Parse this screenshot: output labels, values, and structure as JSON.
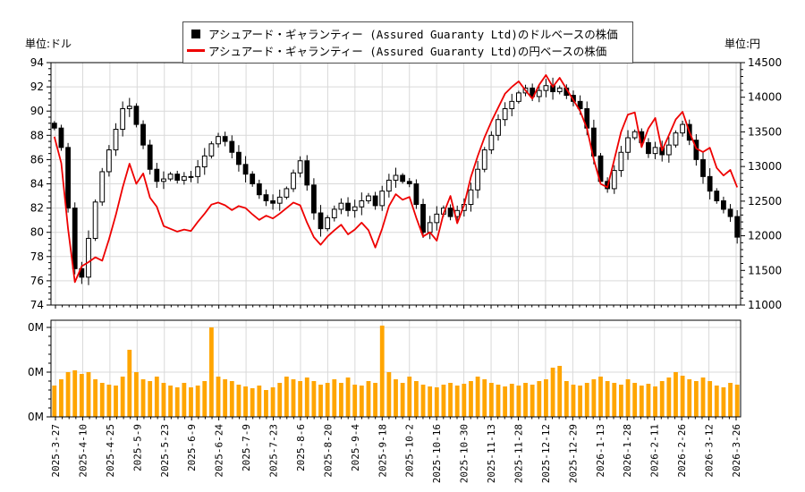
{
  "units": {
    "left": "単位:ドル",
    "right": "単位:円"
  },
  "legend": [
    {
      "marker": "square-icon",
      "color": "#000000",
      "label": "アシュアード・ギャランティー (Assured Guaranty Ltd)のドルベースの株価"
    },
    {
      "marker": "line-icon",
      "color": "#ee0000",
      "label": "アシュアード・ギャランティー (Assured Guaranty Ltd)の円ベースの株価"
    }
  ],
  "colors": {
    "candle_up_fill": "#ffffff",
    "candle_down_fill": "#000000",
    "candle_stroke": "#000000",
    "line_red": "#ee0000",
    "volume_bar": "#ffa500",
    "grid": "#d9d9d9",
    "axis": "#000000",
    "background": "#ffffff"
  },
  "chart_data": [
    {
      "type": "candlestick",
      "title": "",
      "x_tick_labels": [
        "2025-3-27",
        "2025-4-10",
        "2025-4-25",
        "2025-5-9",
        "2025-5-23",
        "2025-6-9",
        "2025-6-24",
        "2025-7-9",
        "2025-7-23",
        "2025-8-6",
        "2025-8-20",
        "2025-9-4",
        "2025-9-18",
        "2025-10-2",
        "2025-10-16",
        "2025-10-30",
        "2025-11-13",
        "2025-11-28",
        "2025-12-12",
        "2025-12-29",
        "2026-1-13",
        "2026-1-28",
        "2026-2-11",
        "2026-2-26",
        "2026-3-12",
        "2026-3-26"
      ],
      "y_left": {
        "unit": "単位:ドル",
        "min": 74,
        "max": 94,
        "tick_step": 2,
        "minor_step": 0.5
      },
      "y_right": {
        "unit": "単位:円",
        "min": 11000,
        "max": 14500,
        "tick_step": 500,
        "minor_step": 100
      },
      "grid": true,
      "legend_position": "top-center",
      "series": [
        {
          "name": "アシュアード・ギャランティー (Assured Guaranty Ltd)のドルベースの株価",
          "axis": "left",
          "type": "candlestick",
          "wick_avg": 0.45,
          "closes": [
            88.6,
            87.0,
            82.0,
            77.0,
            76.3,
            79.5,
            82.5,
            85.0,
            86.8,
            88.5,
            90.2,
            90.4,
            88.9,
            87.2,
            85.2,
            84.2,
            84.4,
            84.8,
            84.3,
            84.6,
            84.6,
            85.4,
            86.3,
            87.3,
            87.9,
            87.5,
            86.6,
            85.6,
            84.8,
            84.0,
            83.1,
            82.6,
            82.4,
            82.9,
            83.6,
            84.9,
            85.9,
            83.9,
            81.6,
            80.3,
            81.2,
            81.9,
            82.4,
            81.8,
            82.1,
            82.6,
            83.0,
            82.2,
            83.4,
            84.3,
            84.7,
            84.2,
            84.0,
            82.3,
            80.0,
            80.8,
            81.5,
            82.0,
            81.3,
            81.8,
            82.3,
            83.5,
            85.2,
            86.8,
            88.0,
            89.3,
            90.2,
            90.8,
            91.5,
            91.9,
            91.2,
            91.7,
            92.1,
            91.6,
            91.9,
            91.3,
            90.8,
            90.2,
            88.6,
            86.3,
            84.2,
            83.6,
            85.1,
            86.6,
            87.8,
            88.3,
            87.4,
            86.5,
            87.0,
            86.4,
            87.2,
            88.2,
            88.9,
            87.6,
            86.0,
            84.6,
            83.4,
            82.6,
            81.9,
            81.3,
            79.6
          ]
        },
        {
          "name": "アシュアード・ギャランティー (Assured Guaranty Ltd)の円ベースの株価",
          "axis": "right",
          "type": "line",
          "values": [
            13430,
            13050,
            12100,
            11330,
            11560,
            11620,
            11690,
            11640,
            11950,
            12300,
            12700,
            13040,
            12750,
            12900,
            12550,
            12420,
            12140,
            12100,
            12060,
            12090,
            12070,
            12200,
            12320,
            12450,
            12480,
            12440,
            12370,
            12430,
            12400,
            12310,
            12230,
            12290,
            12250,
            12320,
            12400,
            12480,
            12440,
            12190,
            11980,
            11870,
            11990,
            12080,
            12160,
            12020,
            12090,
            12190,
            12080,
            11830,
            12100,
            12430,
            12600,
            12520,
            12560,
            12260,
            11990,
            12050,
            11930,
            12320,
            12575,
            12180,
            12440,
            12850,
            13150,
            13420,
            13650,
            13850,
            14050,
            14150,
            14230,
            14100,
            13980,
            14180,
            14320,
            14150,
            14280,
            14120,
            13960,
            13800,
            13550,
            13100,
            12750,
            12700,
            13100,
            13500,
            13750,
            13780,
            13280,
            13550,
            13700,
            13230,
            13450,
            13680,
            13790,
            13500,
            13260,
            13210,
            13270,
            12980,
            12870,
            12950,
            12700
          ]
        }
      ]
    },
    {
      "type": "bar",
      "name": "volume",
      "y_tick_labels": [
        "0M",
        "0M",
        "0M"
      ],
      "axis_max": 1.08,
      "grid": true,
      "values": [
        0.35,
        0.42,
        0.5,
        0.52,
        0.48,
        0.5,
        0.42,
        0.38,
        0.36,
        0.35,
        0.45,
        0.75,
        0.5,
        0.42,
        0.4,
        0.45,
        0.38,
        0.35,
        0.33,
        0.38,
        0.33,
        0.35,
        0.4,
        1.0,
        0.45,
        0.42,
        0.4,
        0.36,
        0.34,
        0.32,
        0.35,
        0.3,
        0.33,
        0.38,
        0.45,
        0.42,
        0.4,
        0.44,
        0.4,
        0.36,
        0.38,
        0.42,
        0.38,
        0.44,
        0.36,
        0.35,
        0.4,
        0.38,
        1.02,
        0.5,
        0.42,
        0.38,
        0.45,
        0.4,
        0.36,
        0.34,
        0.33,
        0.36,
        0.38,
        0.35,
        0.37,
        0.4,
        0.45,
        0.42,
        0.38,
        0.36,
        0.34,
        0.37,
        0.35,
        0.38,
        0.36,
        0.4,
        0.42,
        0.55,
        0.57,
        0.4,
        0.36,
        0.35,
        0.38,
        0.42,
        0.45,
        0.4,
        0.38,
        0.36,
        0.42,
        0.38,
        0.35,
        0.37,
        0.34,
        0.4,
        0.44,
        0.5,
        0.46,
        0.42,
        0.4,
        0.44,
        0.4,
        0.35,
        0.33,
        0.38,
        0.36
      ]
    }
  ]
}
